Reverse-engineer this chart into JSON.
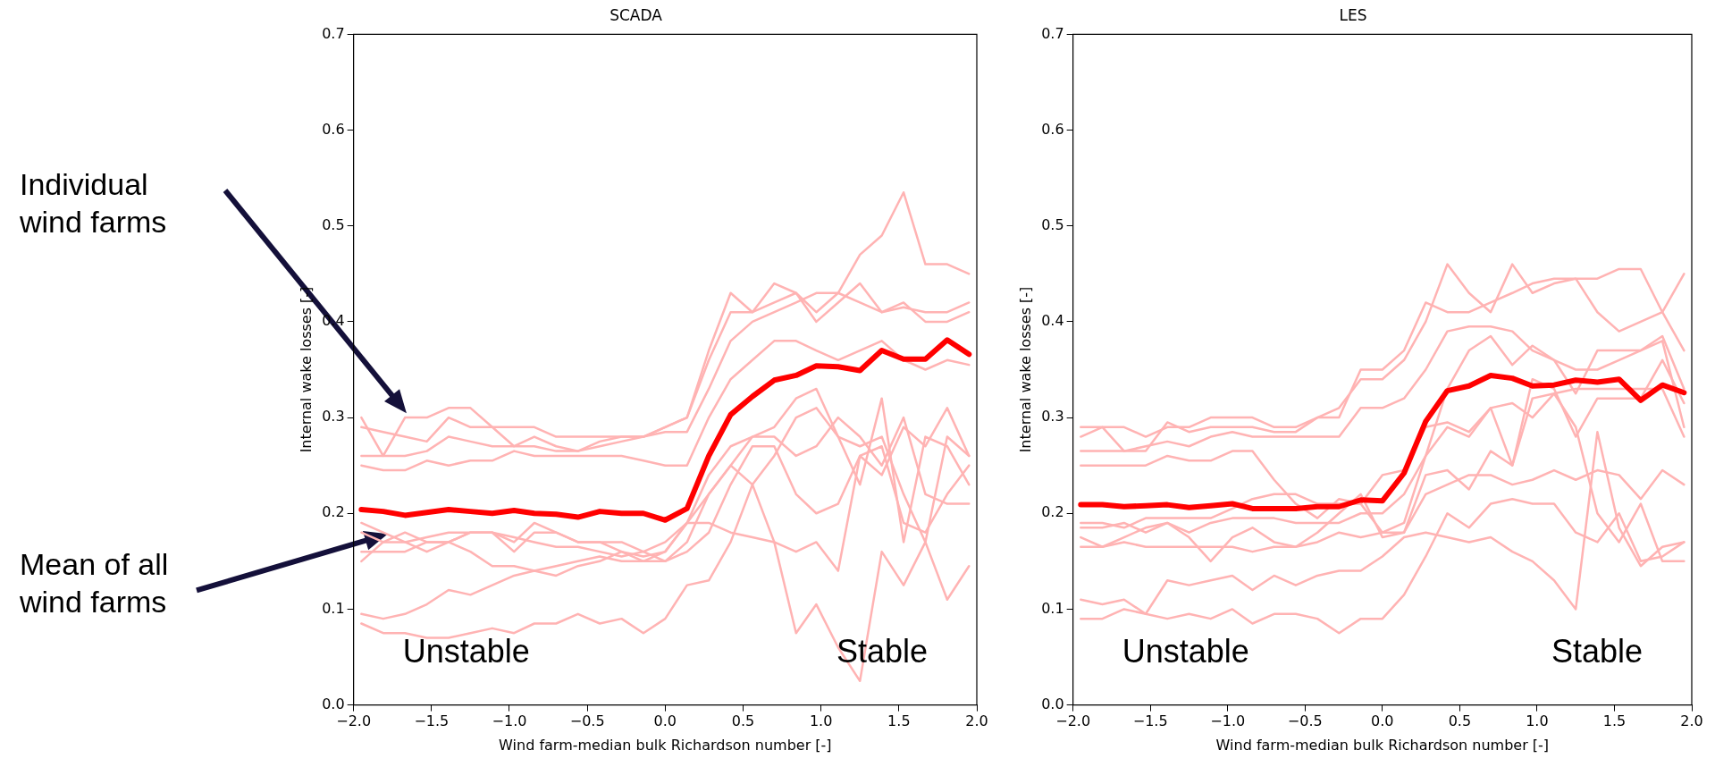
{
  "chart_data": [
    {
      "type": "other",
      "annotations": [
        "Individual wind farms",
        "Mean of all wind farms"
      ]
    },
    {
      "type": "line",
      "title": "SCADA",
      "xlabel": "Wind farm-median bulk Richardson number [-]",
      "ylabel": "Internal wake losses [-]",
      "x": [
        -1.95,
        -1.81,
        -1.67,
        -1.53,
        -1.39,
        -1.25,
        -1.11,
        -0.97,
        -0.84,
        -0.7,
        -0.56,
        -0.42,
        -0.28,
        -0.14,
        0.0,
        0.14,
        0.28,
        0.42,
        0.56,
        0.7,
        0.84,
        0.97,
        1.11,
        1.25,
        1.39,
        1.53,
        1.67,
        1.81,
        1.95
      ],
      "xlim": [
        -2,
        2
      ],
      "xticks": [
        {
          "value": -2,
          "label": "−2.0"
        },
        {
          "value": -1.5,
          "label": "−1.5"
        },
        {
          "value": -1,
          "label": "−1.0"
        },
        {
          "value": -0.5,
          "label": "−0.5"
        },
        {
          "value": 0,
          "label": "0.0"
        },
        {
          "value": 0.5,
          "label": "0.5"
        },
        {
          "value": 1,
          "label": "1.0"
        },
        {
          "value": 1.5,
          "label": "1.5"
        },
        {
          "value": 2,
          "label": "2.0"
        }
      ],
      "ylim": [
        0,
        0.7
      ],
      "yticks": [
        {
          "value": 0,
          "label": "0.0"
        },
        0.1,
        0.2,
        0.3,
        0.4,
        0.5,
        0.6,
        0.7
      ],
      "grid": false,
      "legend": false,
      "annotations": [
        "Unstable",
        "Stable"
      ],
      "series": [
        {
          "color": "#ffb3b3",
          "values": [
            0.3,
            0.26,
            0.3,
            0.3,
            0.31,
            0.31,
            0.29,
            0.29,
            0.29,
            0.28,
            0.28,
            0.28,
            0.28,
            0.28,
            0.29,
            0.3,
            0.36,
            0.41,
            0.41,
            0.42,
            0.43,
            0.41,
            0.43,
            0.47,
            0.49,
            0.535,
            0.46,
            0.46,
            0.45
          ]
        },
        {
          "color": "#ffb3b3",
          "values": [
            0.29,
            0.285,
            0.28,
            0.275,
            0.3,
            0.29,
            0.29,
            0.27,
            0.28,
            0.27,
            0.265,
            0.275,
            0.28,
            0.28,
            0.29,
            0.3,
            0.37,
            0.43,
            0.41,
            0.44,
            0.43,
            0.4,
            0.42,
            0.44,
            0.41,
            0.42,
            0.4,
            0.4,
            0.41
          ]
        },
        {
          "color": "#ffb3b3",
          "values": [
            0.26,
            0.26,
            0.26,
            0.265,
            0.28,
            0.275,
            0.27,
            0.27,
            0.27,
            0.265,
            0.265,
            0.27,
            0.275,
            0.28,
            0.285,
            0.285,
            0.33,
            0.38,
            0.4,
            0.41,
            0.42,
            0.43,
            0.43,
            0.42,
            0.41,
            0.415,
            0.41,
            0.41,
            0.42
          ]
        },
        {
          "color": "#ffb3b3",
          "values": [
            0.25,
            0.245,
            0.245,
            0.255,
            0.25,
            0.255,
            0.255,
            0.265,
            0.26,
            0.26,
            0.26,
            0.26,
            0.26,
            0.255,
            0.25,
            0.25,
            0.3,
            0.34,
            0.36,
            0.38,
            0.38,
            0.37,
            0.36,
            0.37,
            0.38,
            0.36,
            0.35,
            0.36,
            0.355
          ]
        },
        {
          "color": "#ffb3b3",
          "values": [
            0.18,
            0.17,
            0.17,
            0.16,
            0.17,
            0.18,
            0.18,
            0.17,
            0.19,
            0.18,
            0.17,
            0.17,
            0.16,
            0.155,
            0.16,
            0.19,
            0.24,
            0.27,
            0.28,
            0.28,
            0.26,
            0.27,
            0.3,
            0.28,
            0.25,
            0.3,
            0.22,
            0.21,
            0.21
          ]
        },
        {
          "color": "#ffb3b3",
          "values": [
            0.15,
            0.17,
            0.18,
            0.17,
            0.17,
            0.18,
            0.18,
            0.16,
            0.18,
            0.18,
            0.17,
            0.17,
            0.17,
            0.16,
            0.15,
            0.17,
            0.22,
            0.25,
            0.28,
            0.29,
            0.32,
            0.33,
            0.28,
            0.27,
            0.28,
            0.22,
            0.17,
            0.28,
            0.26
          ]
        },
        {
          "color": "#ffb3b3",
          "values": [
            0.19,
            0.18,
            0.17,
            0.175,
            0.18,
            0.18,
            0.18,
            0.175,
            0.17,
            0.165,
            0.165,
            0.16,
            0.155,
            0.16,
            0.17,
            0.19,
            0.19,
            0.18,
            0.175,
            0.17,
            0.16,
            0.17,
            0.14,
            0.26,
            0.24,
            0.29,
            0.27,
            0.31,
            0.26
          ]
        },
        {
          "color": "#ffb3b3",
          "values": [
            0.16,
            0.16,
            0.16,
            0.17,
            0.17,
            0.16,
            0.145,
            0.145,
            0.14,
            0.145,
            0.15,
            0.155,
            0.15,
            0.15,
            0.16,
            0.19,
            0.22,
            0.25,
            0.23,
            0.26,
            0.3,
            0.31,
            0.28,
            0.23,
            0.32,
            0.17,
            0.28,
            0.27,
            0.23
          ]
        },
        {
          "color": "#ffb3b3",
          "values": [
            0.095,
            0.09,
            0.095,
            0.105,
            0.12,
            0.115,
            0.125,
            0.135,
            0.14,
            0.135,
            0.145,
            0.15,
            0.16,
            0.15,
            0.15,
            0.16,
            0.18,
            0.23,
            0.27,
            0.27,
            0.22,
            0.2,
            0.21,
            0.26,
            0.27,
            0.19,
            0.18,
            0.22,
            0.25
          ]
        },
        {
          "color": "#ffb3b3",
          "values": [
            0.085,
            0.075,
            0.075,
            0.07,
            0.07,
            0.075,
            0.08,
            0.075,
            0.085,
            0.085,
            0.095,
            0.085,
            0.09,
            0.075,
            0.09,
            0.125,
            0.13,
            0.17,
            0.23,
            0.17,
            0.075,
            0.105,
            0.06,
            0.025,
            0.16,
            0.125,
            0.17,
            0.11,
            0.145
          ]
        },
        {
          "color": "#ff0000",
          "values": [
            0.204,
            0.202,
            0.198,
            0.201,
            0.204,
            0.202,
            0.2,
            0.203,
            0.2,
            0.199,
            0.196,
            0.202,
            0.2,
            0.2,
            0.193,
            0.205,
            0.26,
            0.303,
            0.322,
            0.339,
            0.344,
            0.354,
            0.353,
            0.349,
            0.37,
            0.361,
            0.361,
            0.381,
            0.366
          ]
        }
      ]
    },
    {
      "type": "line",
      "title": "LES",
      "xlabel": "Wind farm-median bulk Richardson number [-]",
      "ylabel": "Internal wake losses [-]",
      "x": [
        -1.95,
        -1.81,
        -1.67,
        -1.53,
        -1.39,
        -1.25,
        -1.11,
        -0.97,
        -0.84,
        -0.7,
        -0.56,
        -0.42,
        -0.28,
        -0.14,
        0.0,
        0.14,
        0.28,
        0.42,
        0.56,
        0.7,
        0.84,
        0.97,
        1.11,
        1.25,
        1.39,
        1.53,
        1.67,
        1.81,
        1.95
      ],
      "xlim": [
        -2,
        2
      ],
      "xticks": [
        {
          "value": -2,
          "label": "−2.0"
        },
        {
          "value": -1.5,
          "label": "−1.5"
        },
        {
          "value": -1,
          "label": "−1.0"
        },
        {
          "value": -0.5,
          "label": "−0.5"
        },
        {
          "value": 0,
          "label": "0.0"
        },
        {
          "value": 0.5,
          "label": "0.5"
        },
        {
          "value": 1,
          "label": "1.0"
        },
        {
          "value": 1.5,
          "label": "1.5"
        },
        {
          "value": 2,
          "label": "2.0"
        }
      ],
      "ylim": [
        0,
        0.7
      ],
      "yticks": [
        {
          "value": 0,
          "label": "0.0"
        },
        0.1,
        0.2,
        0.3,
        0.4,
        0.5,
        0.6,
        0.7
      ],
      "grid": false,
      "legend": false,
      "annotations": [
        "Unstable",
        "Stable"
      ],
      "series": [
        {
          "color": "#ffb3b3",
          "values": [
            0.29,
            0.29,
            0.29,
            0.28,
            0.29,
            0.29,
            0.3,
            0.3,
            0.3,
            0.29,
            0.29,
            0.3,
            0.31,
            0.34,
            0.34,
            0.36,
            0.4,
            0.46,
            0.43,
            0.41,
            0.46,
            0.43,
            0.44,
            0.445,
            0.41,
            0.39,
            0.4,
            0.41,
            0.45
          ]
        },
        {
          "color": "#ffb3b3",
          "values": [
            0.28,
            0.29,
            0.265,
            0.265,
            0.295,
            0.285,
            0.29,
            0.29,
            0.29,
            0.285,
            0.285,
            0.3,
            0.3,
            0.35,
            0.35,
            0.37,
            0.42,
            0.41,
            0.41,
            0.42,
            0.43,
            0.44,
            0.445,
            0.445,
            0.445,
            0.455,
            0.455,
            0.41,
            0.37
          ]
        },
        {
          "color": "#ffb3b3",
          "values": [
            0.265,
            0.265,
            0.265,
            0.27,
            0.275,
            0.27,
            0.28,
            0.285,
            0.28,
            0.28,
            0.28,
            0.28,
            0.28,
            0.31,
            0.31,
            0.32,
            0.35,
            0.39,
            0.395,
            0.395,
            0.39,
            0.37,
            0.36,
            0.35,
            0.35,
            0.36,
            0.37,
            0.38,
            0.29
          ]
        },
        {
          "color": "#ffb3b3",
          "values": [
            0.25,
            0.25,
            0.25,
            0.25,
            0.26,
            0.255,
            0.255,
            0.265,
            0.265,
            0.235,
            0.21,
            0.195,
            0.215,
            0.21,
            0.18,
            0.19,
            0.26,
            0.33,
            0.37,
            0.385,
            0.355,
            0.375,
            0.36,
            0.325,
            0.37,
            0.37,
            0.37,
            0.385,
            0.33
          ]
        },
        {
          "color": "#ffb3b3",
          "values": [
            0.19,
            0.19,
            0.185,
            0.195,
            0.195,
            0.195,
            0.195,
            0.205,
            0.215,
            0.22,
            0.22,
            0.21,
            0.21,
            0.21,
            0.24,
            0.245,
            0.29,
            0.295,
            0.285,
            0.31,
            0.315,
            0.3,
            0.325,
            0.33,
            0.33,
            0.33,
            0.33,
            0.33,
            0.28
          ]
        },
        {
          "color": "#ffb3b3",
          "values": [
            0.185,
            0.185,
            0.19,
            0.18,
            0.19,
            0.18,
            0.19,
            0.195,
            0.195,
            0.195,
            0.19,
            0.19,
            0.19,
            0.2,
            0.2,
            0.22,
            0.26,
            0.29,
            0.28,
            0.31,
            0.25,
            0.34,
            0.33,
            0.28,
            0.32,
            0.32,
            0.32,
            0.36,
            0.315
          ]
        },
        {
          "color": "#ffb3b3",
          "values": [
            0.175,
            0.165,
            0.175,
            0.185,
            0.19,
            0.175,
            0.15,
            0.175,
            0.185,
            0.17,
            0.165,
            0.18,
            0.2,
            0.22,
            0.175,
            0.18,
            0.24,
            0.245,
            0.225,
            0.265,
            0.25,
            0.32,
            0.325,
            0.29,
            0.2,
            0.17,
            0.21,
            0.15,
            0.15
          ]
        },
        {
          "color": "#ffb3b3",
          "values": [
            0.165,
            0.165,
            0.17,
            0.165,
            0.165,
            0.165,
            0.165,
            0.165,
            0.16,
            0.165,
            0.165,
            0.17,
            0.18,
            0.175,
            0.18,
            0.18,
            0.22,
            0.23,
            0.24,
            0.24,
            0.23,
            0.235,
            0.245,
            0.235,
            0.245,
            0.24,
            0.215,
            0.245,
            0.23
          ]
        },
        {
          "color": "#ffb3b3",
          "values": [
            0.11,
            0.105,
            0.11,
            0.095,
            0.13,
            0.125,
            0.13,
            0.135,
            0.12,
            0.135,
            0.125,
            0.135,
            0.14,
            0.14,
            0.155,
            0.175,
            0.18,
            0.175,
            0.17,
            0.175,
            0.16,
            0.15,
            0.13,
            0.1,
            0.285,
            0.185,
            0.145,
            0.165,
            0.17
          ]
        },
        {
          "color": "#ffb3b3",
          "values": [
            0.09,
            0.09,
            0.1,
            0.095,
            0.09,
            0.095,
            0.09,
            0.1,
            0.085,
            0.095,
            0.095,
            0.09,
            0.075,
            0.09,
            0.09,
            0.115,
            0.155,
            0.2,
            0.185,
            0.21,
            0.215,
            0.21,
            0.21,
            0.18,
            0.17,
            0.2,
            0.15,
            0.155,
            0.17
          ]
        },
        {
          "color": "#ff0000",
          "values": [
            0.209,
            0.209,
            0.207,
            0.208,
            0.209,
            0.206,
            0.208,
            0.21,
            0.205,
            0.205,
            0.205,
            0.207,
            0.207,
            0.214,
            0.213,
            0.242,
            0.296,
            0.328,
            0.333,
            0.344,
            0.341,
            0.333,
            0.334,
            0.339,
            0.337,
            0.34,
            0.318,
            0.334,
            0.326
          ]
        }
      ]
    }
  ]
}
